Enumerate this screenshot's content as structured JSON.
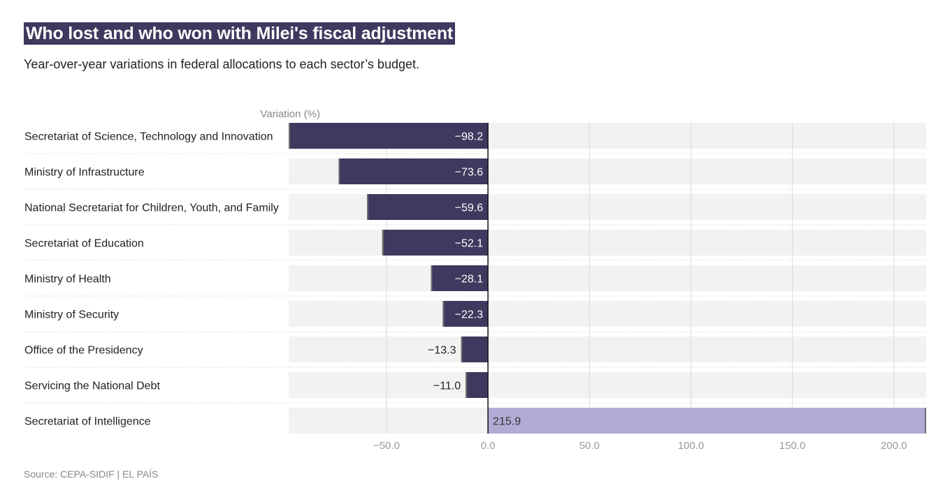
{
  "header": {
    "title": "Who lost and who won with Milei's fiscal adjustment",
    "subtitle": "Year-over-year variations in federal allocations to each sector’s budget."
  },
  "footer": {
    "source": "Source: CEPA-SIDIF | EL PAÍS"
  },
  "colors": {
    "negative": "#40385e",
    "positive": "#b4aad6",
    "track": "#f2f2f2",
    "title_bg": "#40385e"
  },
  "chart_data": {
    "type": "bar",
    "orientation": "horizontal",
    "value_axis_title": "Variation (%)",
    "categories": [
      "Secretariat of Science, Technology and Innovation",
      "Ministry of Infrastructure",
      "National Secretariat for Children, Youth, and Family",
      "Secretariat of Education",
      "Ministry of Health",
      "Ministry of Security",
      "Office of the Presidency",
      "Servicing the National Debt",
      "Secretariat of Intelligence"
    ],
    "values": [
      -98.2,
      -73.6,
      -59.6,
      -52.1,
      -28.1,
      -22.3,
      -13.3,
      -11.0,
      215.9
    ],
    "value_labels": [
      "−98.2",
      "−73.6",
      "−59.6",
      "−52.1",
      "−28.1",
      "−22.3",
      "−13.3",
      "−11.0",
      "215.9"
    ],
    "xlim": [
      -98.2,
      215.9
    ],
    "ticks": [
      -50,
      0,
      50,
      100,
      150,
      200
    ],
    "tick_labels": [
      "−50.0",
      "0.0",
      "50.0",
      "100.0",
      "150.0",
      "200.0"
    ],
    "grid": true
  }
}
